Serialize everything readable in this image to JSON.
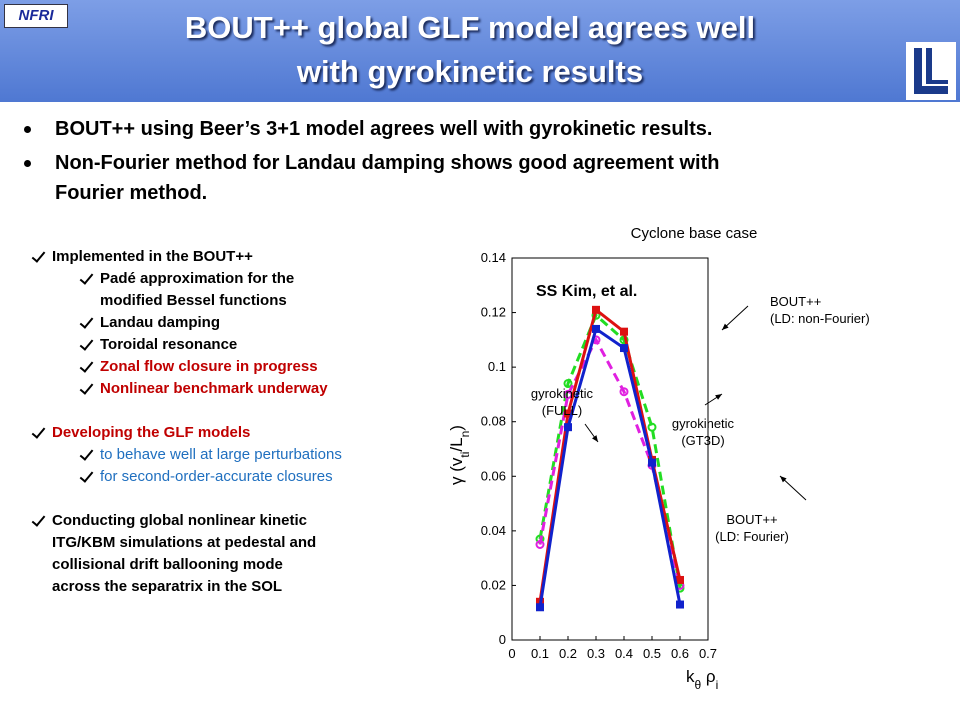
{
  "header": {
    "logo": "NFRI",
    "title": [
      "BOUT++ global GLF model agrees well",
      "with gyrokinetic results"
    ]
  },
  "bullets": [
    {
      "lines": [
        "BOUT++ using Beer’s 3+1 model agrees well with gyrokinetic results."
      ]
    },
    {
      "lines": [
        "Non-Fourier method for Landau damping shows good agreement with",
        "Fourier method."
      ]
    }
  ],
  "checklist": [
    {
      "lines": [
        "Implemented in the BOUT++"
      ],
      "color": "#000000",
      "items": [
        {
          "lines": [
            "Padé approximation for the",
            "modified Bessel functions"
          ],
          "color": "#000000"
        },
        {
          "lines": [
            "Landau damping"
          ],
          "color": "#000000"
        },
        {
          "lines": [
            "Toroidal resonance"
          ],
          "color": "#000000"
        },
        {
          "lines": [
            "Zonal flow closure in progress"
          ],
          "color": "#c00000"
        },
        {
          "lines": [
            "Nonlinear benchmark underway"
          ],
          "color": "#c00000"
        }
      ]
    },
    {
      "lines": [
        "Developing the GLF models"
      ],
      "color": "#c00000",
      "items": [
        {
          "lines": [
            "to behave well at large perturbations"
          ],
          "color": "#1f6fbf"
        },
        {
          "lines": [
            "for second-order-accurate closures"
          ],
          "color": "#1f6fbf"
        }
      ]
    },
    {
      "lines": [
        "Conducting global nonlinear kinetic",
        "ITG/KBM simulations at pedestal and",
        "collisional drift ballooning mode",
        "across the separatrix in the SOL"
      ],
      "color": "#000000",
      "items": []
    }
  ],
  "chart_data": {
    "type": "line",
    "title": "Cyclone base case",
    "note": "SS Kim, et al.",
    "xlabel": [
      "k",
      "θ",
      " ρ",
      "i"
    ],
    "ylabel": [
      "γ (v",
      "ti",
      "/L",
      "n",
      ")"
    ],
    "x": [
      0.1,
      0.2,
      0.3,
      0.4,
      0.5,
      0.6
    ],
    "series": [
      {
        "color": "#22dd22",
        "dash": true,
        "marker": "circle",
        "values": [
          0.037,
          0.094,
          0.119,
          0.11,
          0.078,
          0.019
        ]
      },
      {
        "color": "#e020e0",
        "dash": true,
        "marker": "circle",
        "values": [
          0.035,
          0.09,
          0.11,
          0.091,
          0.064,
          0.02
        ]
      },
      {
        "color": "#dd1111",
        "dash": false,
        "marker": "square",
        "values": [
          0.014,
          0.083,
          0.121,
          0.113,
          0.066,
          0.022
        ]
      },
      {
        "color": "#1122cc",
        "dash": false,
        "marker": "square",
        "values": [
          0.012,
          0.078,
          0.114,
          0.107,
          0.065,
          0.013
        ]
      }
    ],
    "annotations": [
      {
        "lines": [
          "BOUT++",
          "(LD: non-Fourier)"
        ]
      },
      {
        "lines": [
          "gyrokinetic",
          "(FULL)"
        ]
      },
      {
        "lines": [
          "gyrokinetic",
          "(GT3D)"
        ]
      },
      {
        "lines": [
          "BOUT++",
          "(LD: Fourier)"
        ]
      }
    ],
    "xlim": [
      0,
      0.7
    ],
    "xticks": [
      0,
      0.1,
      0.2,
      0.3,
      0.4,
      0.5,
      0.6,
      0.7
    ],
    "ylim": [
      0,
      0.14
    ],
    "yticks": [
      0,
      0.02,
      0.04,
      0.06,
      0.08,
      0.1,
      0.12,
      0.14
    ]
  }
}
